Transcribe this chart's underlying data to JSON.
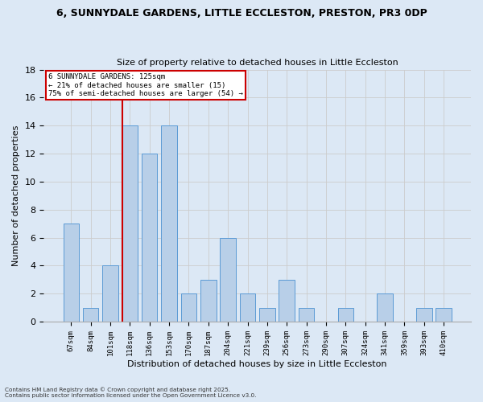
{
  "title1": "6, SUNNYDALE GARDENS, LITTLE ECCLESTON, PRESTON, PR3 0DP",
  "title2": "Size of property relative to detached houses in Little Eccleston",
  "xlabel": "Distribution of detached houses by size in Little Eccleston",
  "ylabel": "Number of detached properties",
  "categories": [
    "67sqm",
    "84sqm",
    "101sqm",
    "118sqm",
    "136sqm",
    "153sqm",
    "170sqm",
    "187sqm",
    "204sqm",
    "221sqm",
    "239sqm",
    "256sqm",
    "273sqm",
    "290sqm",
    "307sqm",
    "324sqm",
    "341sqm",
    "359sqm",
    "393sqm",
    "410sqm"
  ],
  "values": [
    7,
    1,
    4,
    14,
    12,
    14,
    2,
    3,
    6,
    2,
    1,
    3,
    1,
    0,
    1,
    0,
    2,
    0,
    1,
    1
  ],
  "bar_color": "#b8cfe8",
  "bar_edge_color": "#5b9bd5",
  "grid_color": "#cccccc",
  "bg_color": "#dce8f5",
  "vline_color": "#cc0000",
  "annotation_title": "6 SUNNYDALE GARDENS: 125sqm",
  "annotation_line2": "← 21% of detached houses are smaller (15)",
  "annotation_line3": "75% of semi-detached houses are larger (54) →",
  "annotation_box_color": "#ffffff",
  "annotation_box_edge": "#cc0000",
  "footer1": "Contains HM Land Registry data © Crown copyright and database right 2025.",
  "footer2": "Contains public sector information licensed under the Open Government Licence v3.0.",
  "ylim": [
    0,
    18
  ],
  "yticks": [
    0,
    2,
    4,
    6,
    8,
    10,
    12,
    14,
    16,
    18
  ]
}
